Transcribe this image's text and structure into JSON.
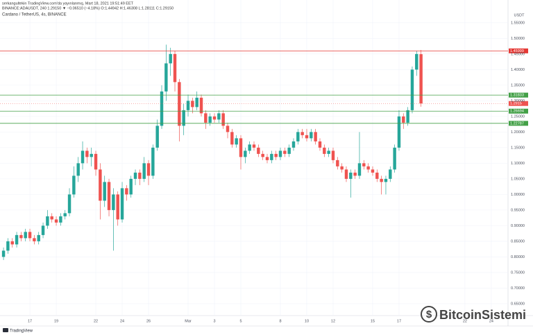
{
  "chart_data": {
    "type": "candlestick",
    "header": "serkangultekin TradingView.com'da yayınlanmış, Mart 18, 2021 19:51:49 EET",
    "subheader": "BINANCE:ADAUSDT, 240  1.29150 ▼ −0.06510 (−4.18%)  O:1.44942 H:1.46308 L:1.28111 C:1.29150",
    "title": "Cardano / TetherUS, 4s, BINANCE",
    "ylabel": "USDT",
    "watermark": "BitcoinSistemi",
    "footer": "TradingView",
    "up_color": "#26a69a",
    "down_color": "#ef5350",
    "ylim": [
      0.612,
      1.623
    ],
    "yticks": [
      {
        "value": 0.65,
        "label": "0.65000"
      },
      {
        "value": 0.7,
        "label": "0.70000"
      },
      {
        "value": 0.75,
        "label": "0.75000"
      },
      {
        "value": 0.8,
        "label": "0.80000"
      },
      {
        "value": 0.85,
        "label": "0.85000"
      },
      {
        "value": 0.9,
        "label": "0.90000"
      },
      {
        "value": 0.95,
        "label": "0.95000"
      },
      {
        "value": 1,
        "label": "1.00000"
      },
      {
        "value": 1.05,
        "label": "1.05000"
      },
      {
        "value": 1.1,
        "label": "1.10000"
      },
      {
        "value": 1.15,
        "label": "1.15000"
      },
      {
        "value": 1.2,
        "label": "1.20000"
      },
      {
        "value": 1.25,
        "label": "1.25000"
      },
      {
        "value": 1.3,
        "label": "1.30000"
      },
      {
        "value": 1.35,
        "label": "1.35000"
      },
      {
        "value": 1.4,
        "label": "1.40000"
      },
      {
        "value": 1.45,
        "label": "1.45000"
      },
      {
        "value": 1.5,
        "label": "1.50000"
      },
      {
        "value": 1.55,
        "label": "1.55000"
      }
    ],
    "xlim": [
      -0.8,
      114.8
    ],
    "xticks": [
      {
        "value": 6,
        "label": "17"
      },
      {
        "value": 12,
        "label": "19"
      },
      {
        "value": 21,
        "label": "22"
      },
      {
        "value": 27,
        "label": "24"
      },
      {
        "value": 33,
        "label": "26"
      },
      {
        "value": 42,
        "label": "Mar"
      },
      {
        "value": 48,
        "label": "3"
      },
      {
        "value": 54,
        "label": "5"
      },
      {
        "value": 63,
        "label": "8"
      },
      {
        "value": 69,
        "label": "10"
      },
      {
        "value": 75,
        "label": "12"
      },
      {
        "value": 84,
        "label": "15"
      },
      {
        "value": 90,
        "label": "17"
      },
      {
        "value": 105,
        "label": "22"
      },
      {
        "value": 111,
        "label": "24"
      }
    ],
    "grid": true,
    "hlines": [
      {
        "value": 1.45999,
        "color": "#e53935"
      },
      {
        "value": 1.31833,
        "color": "#43a047"
      },
      {
        "value": 1.26694,
        "color": "#43a047"
      },
      {
        "value": 1.22787,
        "color": "#43a047"
      }
    ],
    "last_price": 1.2915,
    "ohlc": [
      [
        0.8,
        0.83,
        0.79,
        0.82
      ],
      [
        0.82,
        0.86,
        0.81,
        0.85
      ],
      [
        0.85,
        0.86,
        0.83,
        0.84
      ],
      [
        0.84,
        0.88,
        0.83,
        0.87
      ],
      [
        0.87,
        0.88,
        0.85,
        0.86
      ],
      [
        0.86,
        0.89,
        0.85,
        0.88
      ],
      [
        0.88,
        0.89,
        0.85,
        0.86
      ],
      [
        0.86,
        0.87,
        0.84,
        0.85
      ],
      [
        0.85,
        0.88,
        0.84,
        0.87
      ],
      [
        0.87,
        0.91,
        0.86,
        0.9
      ],
      [
        0.9,
        0.95,
        0.89,
        0.93
      ],
      [
        0.93,
        0.94,
        0.91,
        0.92
      ],
      [
        0.92,
        0.93,
        0.9,
        0.91
      ],
      [
        0.91,
        0.94,
        0.9,
        0.93
      ],
      [
        0.93,
        0.95,
        0.92,
        0.94
      ],
      [
        0.94,
        1.02,
        0.93,
        1.0
      ],
      [
        1.0,
        1.09,
        0.99,
        1.06
      ],
      [
        1.06,
        1.12,
        1.04,
        1.1
      ],
      [
        1.1,
        1.17,
        1.08,
        1.14
      ],
      [
        1.14,
        1.15,
        1.1,
        1.12
      ],
      [
        1.12,
        1.15,
        1.09,
        1.13
      ],
      [
        1.13,
        1.14,
        1.06,
        1.08
      ],
      [
        1.08,
        1.1,
        0.92,
        0.98
      ],
      [
        0.98,
        1.06,
        0.96,
        1.04
      ],
      [
        1.04,
        1.05,
        0.93,
        0.95
      ],
      [
        0.95,
        1.02,
        0.82,
        1.0
      ],
      [
        1.0,
        1.01,
        0.9,
        0.92
      ],
      [
        0.92,
        1.04,
        0.91,
        1.02
      ],
      [
        1.02,
        1.03,
        0.98,
        1.0
      ],
      [
        1.0,
        1.06,
        0.99,
        1.05
      ],
      [
        1.05,
        1.08,
        1.03,
        1.07
      ],
      [
        1.07,
        1.08,
        1.03,
        1.05
      ],
      [
        1.05,
        1.12,
        1.04,
        1.1
      ],
      [
        1.1,
        1.11,
        1.03,
        1.06
      ],
      [
        1.06,
        1.16,
        1.05,
        1.15
      ],
      [
        1.15,
        1.24,
        1.14,
        1.22
      ],
      [
        1.22,
        1.35,
        1.21,
        1.33
      ],
      [
        1.33,
        1.48,
        1.3,
        1.42
      ],
      [
        1.42,
        1.47,
        1.38,
        1.45
      ],
      [
        1.45,
        1.46,
        1.33,
        1.36
      ],
      [
        1.36,
        1.37,
        1.17,
        1.22
      ],
      [
        1.22,
        1.29,
        1.19,
        1.27
      ],
      [
        1.27,
        1.32,
        1.25,
        1.3
      ],
      [
        1.3,
        1.31,
        1.26,
        1.28
      ],
      [
        1.28,
        1.33,
        1.27,
        1.31
      ],
      [
        1.31,
        1.32,
        1.25,
        1.26
      ],
      [
        1.26,
        1.27,
        1.21,
        1.23
      ],
      [
        1.23,
        1.26,
        1.22,
        1.25
      ],
      [
        1.25,
        1.26,
        1.23,
        1.24
      ],
      [
        1.24,
        1.27,
        1.23,
        1.26
      ],
      [
        1.26,
        1.27,
        1.21,
        1.22
      ],
      [
        1.22,
        1.23,
        1.18,
        1.2
      ],
      [
        1.2,
        1.21,
        1.15,
        1.16
      ],
      [
        1.16,
        1.19,
        1.15,
        1.18
      ],
      [
        1.18,
        1.19,
        1.08,
        1.12
      ],
      [
        1.12,
        1.15,
        1.1,
        1.14
      ],
      [
        1.14,
        1.17,
        1.13,
        1.16
      ],
      [
        1.16,
        1.17,
        1.14,
        1.15
      ],
      [
        1.15,
        1.16,
        1.12,
        1.13
      ],
      [
        1.13,
        1.14,
        1.11,
        1.12
      ],
      [
        1.12,
        1.13,
        1.1,
        1.11
      ],
      [
        1.11,
        1.14,
        1.1,
        1.13
      ],
      [
        1.13,
        1.14,
        1.11,
        1.12
      ],
      [
        1.12,
        1.15,
        1.11,
        1.14
      ],
      [
        1.14,
        1.15,
        1.12,
        1.13
      ],
      [
        1.13,
        1.16,
        1.12,
        1.15
      ],
      [
        1.15,
        1.18,
        1.14,
        1.17
      ],
      [
        1.17,
        1.21,
        1.16,
        1.2
      ],
      [
        1.2,
        1.21,
        1.18,
        1.19
      ],
      [
        1.19,
        1.21,
        1.17,
        1.18
      ],
      [
        1.18,
        1.21,
        1.17,
        1.2
      ],
      [
        1.2,
        1.21,
        1.16,
        1.17
      ],
      [
        1.17,
        1.18,
        1.14,
        1.15
      ],
      [
        1.15,
        1.16,
        1.12,
        1.13
      ],
      [
        1.13,
        1.15,
        1.12,
        1.14
      ],
      [
        1.14,
        1.15,
        1.1,
        1.11
      ],
      [
        1.11,
        1.12,
        1.08,
        1.09
      ],
      [
        1.09,
        1.1,
        1.07,
        1.08
      ],
      [
        1.08,
        1.09,
        1.04,
        1.05
      ],
      [
        1.05,
        1.08,
        0.99,
        1.07
      ],
      [
        1.07,
        1.08,
        1.05,
        1.06
      ],
      [
        1.06,
        1.2,
        1.05,
        1.1
      ],
      [
        1.1,
        1.11,
        1.08,
        1.09
      ],
      [
        1.09,
        1.1,
        1.07,
        1.08
      ],
      [
        1.08,
        1.09,
        1.06,
        1.07
      ],
      [
        1.07,
        1.08,
        1.04,
        1.05
      ],
      [
        1.05,
        1.06,
        1.0,
        1.04
      ],
      [
        1.04,
        1.06,
        1.0,
        1.05
      ],
      [
        1.05,
        1.09,
        1.04,
        1.08
      ],
      [
        1.08,
        1.16,
        1.07,
        1.15
      ],
      [
        1.15,
        1.27,
        1.14,
        1.25
      ],
      [
        1.25,
        1.26,
        1.21,
        1.23
      ],
      [
        1.23,
        1.28,
        1.22,
        1.27
      ],
      [
        1.27,
        1.41,
        1.26,
        1.4
      ],
      [
        1.4,
        1.46,
        1.38,
        1.45
      ],
      [
        1.44942,
        1.46308,
        1.28111,
        1.2915
      ]
    ]
  }
}
